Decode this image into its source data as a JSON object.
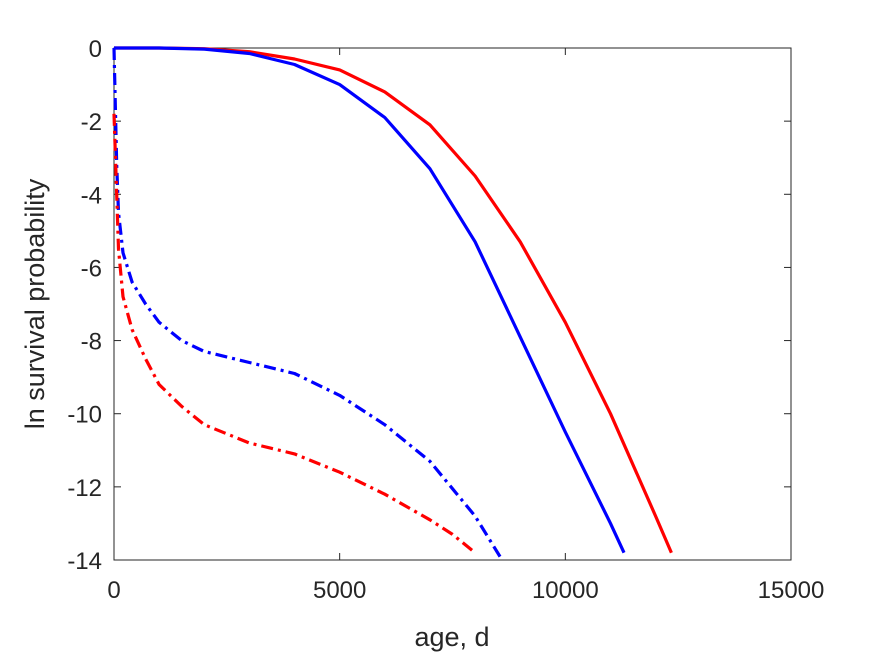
{
  "chart_data": {
    "type": "line",
    "title": "",
    "xlabel": "age, d",
    "ylabel": "ln survival probability",
    "xlim": [
      0,
      15000
    ],
    "ylim": [
      -14,
      0
    ],
    "xticks": [
      0,
      5000,
      10000,
      15000
    ],
    "xtick_labels": [
      "0",
      "5000",
      "10000",
      "15000"
    ],
    "yticks": [
      0,
      -2,
      -4,
      -6,
      -8,
      -10,
      -12,
      -14
    ],
    "ytick_labels": [
      "0",
      "-2",
      "-4",
      "-6",
      "-8",
      "-10",
      "-12",
      "-14"
    ],
    "grid": false,
    "legend": "none",
    "series": [
      {
        "color": "#ff0000",
        "style": "solid",
        "x": [
          0,
          1000,
          2000,
          3000,
          4000,
          5000,
          6000,
          7000,
          8000,
          9000,
          10000,
          11000,
          12000,
          12350
        ],
        "y": [
          0,
          0,
          -0.02,
          -0.1,
          -0.3,
          -0.6,
          -1.2,
          -2.1,
          -3.5,
          -5.3,
          -7.5,
          -10.0,
          -12.8,
          -13.8
        ]
      },
      {
        "color": "#0000ff",
        "style": "solid",
        "x": [
          0,
          1000,
          2000,
          3000,
          4000,
          5000,
          6000,
          7000,
          8000,
          9000,
          10000,
          11000,
          11300
        ],
        "y": [
          0,
          0,
          -0.03,
          -0.15,
          -0.45,
          -1.0,
          -1.9,
          -3.3,
          -5.3,
          -7.9,
          -10.5,
          -13.0,
          -13.8
        ]
      },
      {
        "color": "#0000ff",
        "style": "dashdot",
        "x": [
          0,
          60,
          100,
          200,
          400,
          700,
          1000,
          1500,
          2000,
          3000,
          4000,
          5000,
          6000,
          7000,
          8000,
          8600
        ],
        "y": [
          0,
          -3.2,
          -4.5,
          -5.6,
          -6.4,
          -7.0,
          -7.5,
          -8.0,
          -8.3,
          -8.6,
          -8.9,
          -9.5,
          -10.3,
          -11.3,
          -12.8,
          -14.0
        ]
      },
      {
        "color": "#ff0000",
        "style": "dashdot",
        "x": [
          0,
          60,
          100,
          200,
          400,
          700,
          1000,
          1500,
          2000,
          3000,
          4000,
          5000,
          6000,
          7000,
          7500,
          8000
        ],
        "y": [
          -1.8,
          -4.0,
          -5.5,
          -6.8,
          -7.7,
          -8.5,
          -9.2,
          -9.8,
          -10.3,
          -10.8,
          -11.1,
          -11.6,
          -12.2,
          -12.9,
          -13.3,
          -13.8
        ]
      }
    ]
  }
}
